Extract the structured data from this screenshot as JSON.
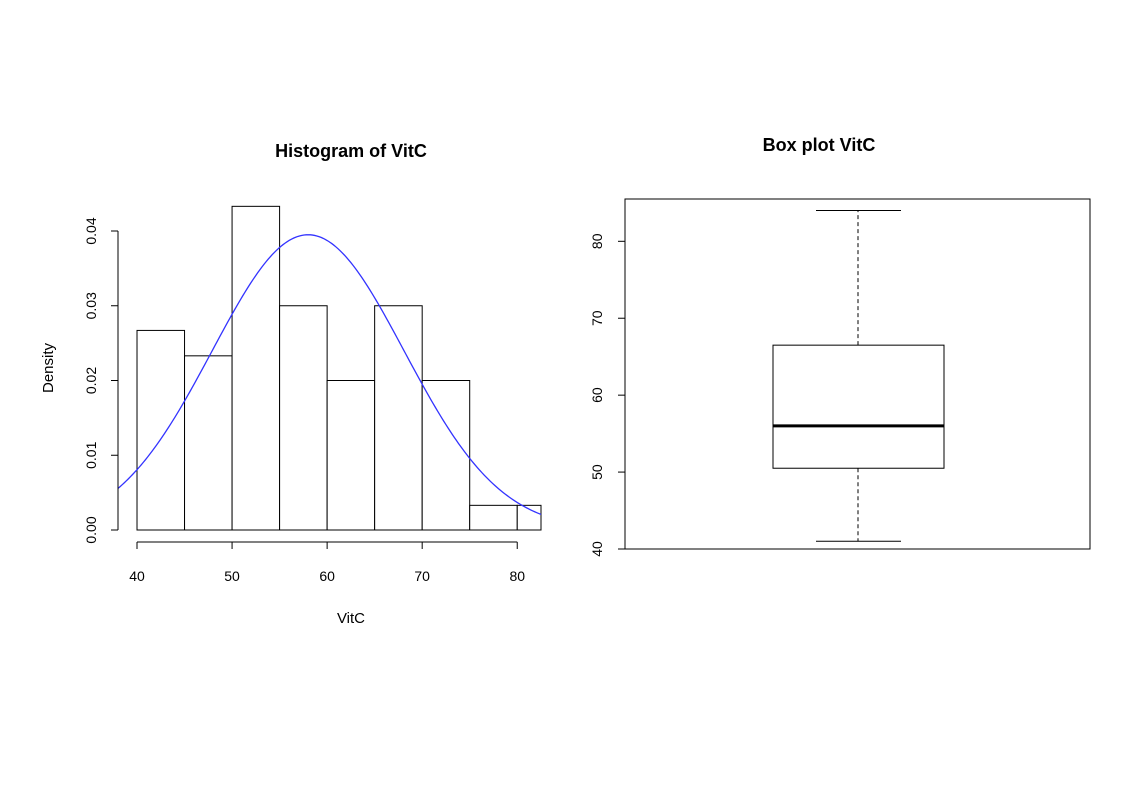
{
  "chart_data": [
    {
      "type": "histogram",
      "title": "Histogram of VitC",
      "xlabel": "VitC",
      "ylabel": "Density",
      "xlim": [
        38,
        82.5
      ],
      "ylim": [
        0,
        0.04
      ],
      "x_ticks": [
        "40",
        "50",
        "60",
        "70",
        "80"
      ],
      "y_ticks": [
        "0.00",
        "0.01",
        "0.02",
        "0.03",
        "0.04"
      ],
      "bins": [
        {
          "from": 40,
          "to": 45,
          "density": 0.0267
        },
        {
          "from": 45,
          "to": 50,
          "density": 0.0233
        },
        {
          "from": 50,
          "to": 55,
          "density": 0.0433
        },
        {
          "from": 55,
          "to": 60,
          "density": 0.03
        },
        {
          "from": 60,
          "to": 65,
          "density": 0.02
        },
        {
          "from": 65,
          "to": 70,
          "density": 0.03
        },
        {
          "from": 70,
          "to": 75,
          "density": 0.02
        },
        {
          "from": 75,
          "to": 80,
          "density": 0.0033
        },
        {
          "from": 80,
          "to": 85,
          "density": 0.0033
        }
      ],
      "normal_curve": {
        "mean": 58.0,
        "sd": 10.1,
        "color": "#3333ff"
      },
      "bar_fill": "#ffffff",
      "bar_stroke": "#000000"
    },
    {
      "type": "boxplot",
      "title": "Box plot VitC",
      "ylim": [
        40,
        85.5
      ],
      "y_ticks": [
        "40",
        "50",
        "60",
        "70",
        "80"
      ],
      "min": 41,
      "q1": 50.5,
      "median": 56,
      "q3": 66.5,
      "max": 84
    }
  ]
}
